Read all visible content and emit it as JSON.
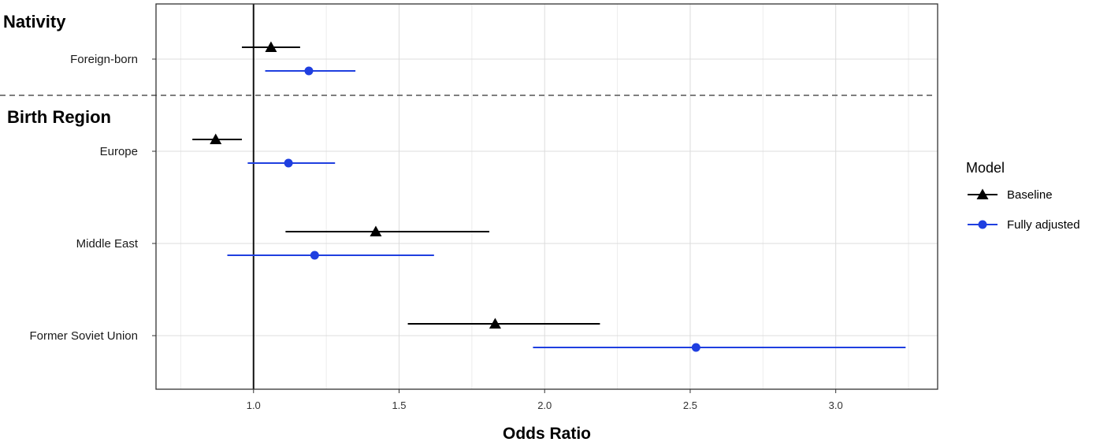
{
  "chart_data": {
    "type": "forest",
    "xlabel": "Odds Ratio",
    "xlim": [
      0.665,
      3.35
    ],
    "xticks": [
      1.0,
      1.5,
      2.0,
      2.5,
      3.0
    ],
    "xtick_labels": [
      "1.0",
      "1.5",
      "2.0",
      "2.5",
      "3.0"
    ],
    "reference_line": 1.0,
    "grid": true,
    "legend": {
      "title": "Model",
      "placement": "right"
    },
    "sections": [
      {
        "heading": "Nativity",
        "categories": [
          "Foreign-born"
        ]
      },
      {
        "heading": "Birth Region",
        "categories": [
          "Europe",
          "Middle East",
          "Former Soviet Union"
        ]
      }
    ],
    "categories": [
      "Foreign-born",
      "Europe",
      "Middle East",
      "Former Soviet Union"
    ],
    "series": [
      {
        "name": "Baseline",
        "color": "#000000",
        "marker": "triangle",
        "points": [
          {
            "category": "Foreign-born",
            "or": 1.06,
            "lo": 0.96,
            "hi": 1.16
          },
          {
            "category": "Europe",
            "or": 0.87,
            "lo": 0.79,
            "hi": 0.96
          },
          {
            "category": "Middle East",
            "or": 1.42,
            "lo": 1.11,
            "hi": 1.81
          },
          {
            "category": "Former Soviet Union",
            "or": 1.83,
            "lo": 1.53,
            "hi": 2.19
          }
        ]
      },
      {
        "name": "Fully adjusted",
        "color": "#1f3fe0",
        "marker": "circle",
        "points": [
          {
            "category": "Foreign-born",
            "or": 1.19,
            "lo": 1.04,
            "hi": 1.35
          },
          {
            "category": "Europe",
            "or": 1.12,
            "lo": 0.98,
            "hi": 1.28
          },
          {
            "category": "Middle East",
            "or": 1.21,
            "lo": 0.91,
            "hi": 1.62
          },
          {
            "category": "Former Soviet Union",
            "or": 2.52,
            "lo": 1.96,
            "hi": 3.24
          }
        ]
      }
    ]
  }
}
